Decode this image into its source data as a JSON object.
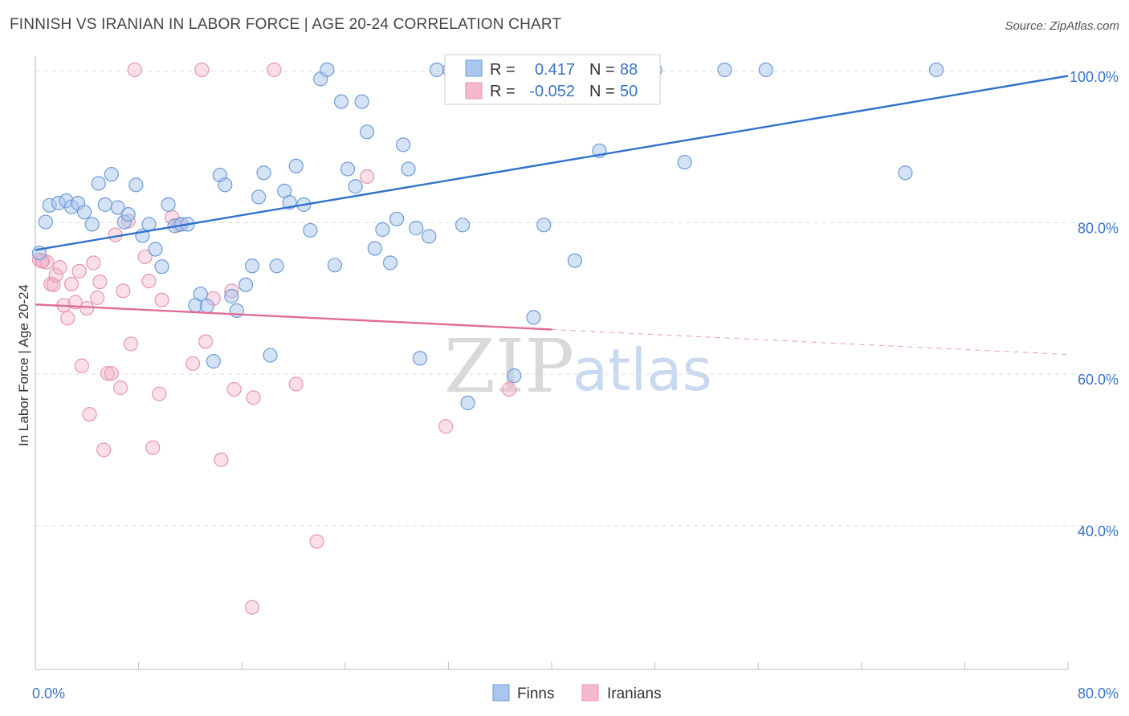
{
  "title": "FINNISH VS IRANIAN IN LABOR FORCE | AGE 20-24 CORRELATION CHART",
  "source": "Source: ZipAtlas.com",
  "watermark": {
    "zip": "ZIP",
    "atlas": "atlas"
  },
  "colors": {
    "finns_fill": "#a9c6ee",
    "finns_stroke": "#6f9bd8",
    "finns_line": "#2f72cc",
    "iranians_fill": "#f5b8cc",
    "iranians_stroke": "#e796b0",
    "iranians_line": "#e06d95",
    "tick_text": "#3b74c9",
    "grid": "#dddddd"
  },
  "legend": {
    "rows": [
      {
        "r_label": "R =",
        "r_value": "0.417",
        "n_label": "N =",
        "n_value": "88"
      },
      {
        "r_label": "R =",
        "r_value": "-0.052",
        "n_label": "N =",
        "n_value": "50"
      }
    ]
  },
  "bottom_legend": [
    "Finns",
    "Iranians"
  ],
  "chart_data": {
    "type": "scatter",
    "xlabel": "",
    "ylabel": "In Labor Force | Age 20-24",
    "xlim": [
      0,
      80
    ],
    "ylim": [
      21,
      102
    ],
    "x_tick_labels": [
      {
        "value": 0,
        "label": "0.0%"
      },
      {
        "value": 80,
        "label": "80.0%"
      }
    ],
    "y_tick_labels": [
      {
        "value": 100,
        "label": "100.0%"
      },
      {
        "value": 80,
        "label": "80.0%"
      },
      {
        "value": 60,
        "label": "60.0%"
      },
      {
        "value": 40,
        "label": "40.0%"
      }
    ],
    "grid": true,
    "legend_position": "top-center",
    "series": [
      {
        "name": "Finns",
        "points": [
          [
            0.3,
            76.0
          ],
          [
            0.8,
            80.1
          ],
          [
            1.1,
            82.3
          ],
          [
            1.8,
            82.6
          ],
          [
            2.4,
            82.9
          ],
          [
            2.8,
            82.1
          ],
          [
            3.3,
            82.6
          ],
          [
            3.8,
            81.4
          ],
          [
            4.4,
            79.8
          ],
          [
            4.9,
            85.2
          ],
          [
            5.4,
            82.4
          ],
          [
            5.9,
            86.4
          ],
          [
            6.4,
            82.0
          ],
          [
            6.9,
            80.1
          ],
          [
            7.2,
            81.1
          ],
          [
            7.8,
            85.0
          ],
          [
            8.3,
            78.3
          ],
          [
            8.8,
            79.8
          ],
          [
            9.3,
            76.5
          ],
          [
            9.8,
            74.2
          ],
          [
            10.3,
            82.4
          ],
          [
            10.8,
            79.6
          ],
          [
            11.3,
            79.8
          ],
          [
            11.8,
            79.8
          ],
          [
            12.4,
            69.1
          ],
          [
            12.8,
            70.6
          ],
          [
            13.3,
            69.0
          ],
          [
            13.8,
            61.7
          ],
          [
            14.3,
            86.3
          ],
          [
            14.7,
            85.0
          ],
          [
            15.2,
            70.3
          ],
          [
            15.6,
            68.4
          ],
          [
            16.3,
            71.8
          ],
          [
            16.8,
            74.3
          ],
          [
            17.3,
            83.4
          ],
          [
            17.7,
            86.6
          ],
          [
            18.2,
            62.5
          ],
          [
            18.7,
            74.3
          ],
          [
            19.3,
            84.2
          ],
          [
            19.7,
            82.7
          ],
          [
            20.2,
            87.5
          ],
          [
            20.8,
            82.4
          ],
          [
            21.3,
            79.0
          ],
          [
            22.1,
            99.0
          ],
          [
            22.6,
            100.2
          ],
          [
            23.2,
            74.4
          ],
          [
            23.7,
            96.0
          ],
          [
            24.2,
            87.1
          ],
          [
            24.8,
            84.8
          ],
          [
            25.3,
            96.0
          ],
          [
            25.7,
            92.0
          ],
          [
            26.3,
            76.6
          ],
          [
            26.9,
            79.1
          ],
          [
            27.5,
            74.7
          ],
          [
            28.0,
            80.5
          ],
          [
            28.5,
            90.3
          ],
          [
            28.9,
            87.1
          ],
          [
            29.5,
            79.3
          ],
          [
            29.8,
            62.1
          ],
          [
            30.5,
            78.2
          ],
          [
            31.1,
            100.2
          ],
          [
            32.1,
            100.2
          ],
          [
            33.1,
            79.7
          ],
          [
            33.5,
            56.2
          ],
          [
            33.9,
            100.2
          ],
          [
            34.3,
            100.2
          ],
          [
            35.2,
            100.2
          ],
          [
            36.0,
            100.2
          ],
          [
            37.1,
            59.8
          ],
          [
            37.5,
            100.2
          ],
          [
            38.3,
            100.2
          ],
          [
            38.6,
            67.5
          ],
          [
            39.4,
            79.7
          ],
          [
            39.7,
            100.2
          ],
          [
            40.3,
            100.2
          ],
          [
            41.2,
            100.2
          ],
          [
            41.8,
            75.0
          ],
          [
            42.7,
            100.2
          ],
          [
            43.7,
            89.5
          ],
          [
            44.7,
            100.2
          ],
          [
            45.6,
            100.2
          ],
          [
            46.5,
            100.2
          ],
          [
            48.0,
            100.2
          ],
          [
            50.3,
            88.0
          ],
          [
            53.4,
            100.2
          ],
          [
            56.6,
            100.2
          ],
          [
            67.4,
            86.6
          ],
          [
            69.8,
            100.2
          ]
        ]
      },
      {
        "name": "Iranians",
        "points": [
          [
            0.3,
            75.1
          ],
          [
            0.6,
            75.0
          ],
          [
            0.9,
            74.8
          ],
          [
            1.2,
            71.9
          ],
          [
            1.4,
            71.8
          ],
          [
            1.6,
            73.1
          ],
          [
            1.9,
            74.1
          ],
          [
            2.2,
            69.1
          ],
          [
            2.5,
            67.4
          ],
          [
            2.8,
            71.9
          ],
          [
            3.1,
            69.5
          ],
          [
            3.4,
            73.6
          ],
          [
            3.6,
            61.1
          ],
          [
            4.0,
            68.7
          ],
          [
            4.2,
            54.7
          ],
          [
            4.5,
            74.7
          ],
          [
            4.8,
            70.1
          ],
          [
            5.0,
            72.2
          ],
          [
            5.3,
            50.0
          ],
          [
            5.6,
            60.1
          ],
          [
            5.9,
            60.1
          ],
          [
            6.2,
            78.4
          ],
          [
            6.6,
            58.2
          ],
          [
            6.8,
            71.0
          ],
          [
            7.2,
            80.2
          ],
          [
            7.4,
            64.0
          ],
          [
            7.7,
            100.2
          ],
          [
            8.5,
            75.5
          ],
          [
            8.8,
            72.3
          ],
          [
            9.1,
            50.3
          ],
          [
            9.6,
            57.4
          ],
          [
            9.8,
            69.8
          ],
          [
            10.6,
            80.7
          ],
          [
            11.1,
            79.7
          ],
          [
            12.2,
            61.4
          ],
          [
            12.9,
            100.2
          ],
          [
            13.2,
            64.3
          ],
          [
            13.8,
            70.0
          ],
          [
            14.4,
            48.7
          ],
          [
            15.2,
            71.0
          ],
          [
            15.4,
            58.0
          ],
          [
            16.8,
            29.2
          ],
          [
            16.9,
            56.9
          ],
          [
            18.5,
            100.2
          ],
          [
            20.2,
            58.7
          ],
          [
            21.8,
            37.9
          ],
          [
            25.7,
            86.1
          ],
          [
            31.8,
            53.1
          ],
          [
            36.7,
            58.0
          ],
          [
            0.5,
            74.9
          ]
        ]
      }
    ],
    "trendlines": [
      {
        "series": "Finns",
        "x": [
          0,
          80
        ],
        "y": [
          76.4,
          99.4
        ],
        "style": "solid"
      },
      {
        "series": "Iranians",
        "x": [
          0,
          40
        ],
        "y": [
          69.2,
          65.9
        ],
        "style": "solid"
      },
      {
        "series": "Iranians",
        "x": [
          40,
          80
        ],
        "y": [
          65.9,
          62.6
        ],
        "style": "dashed"
      }
    ]
  }
}
